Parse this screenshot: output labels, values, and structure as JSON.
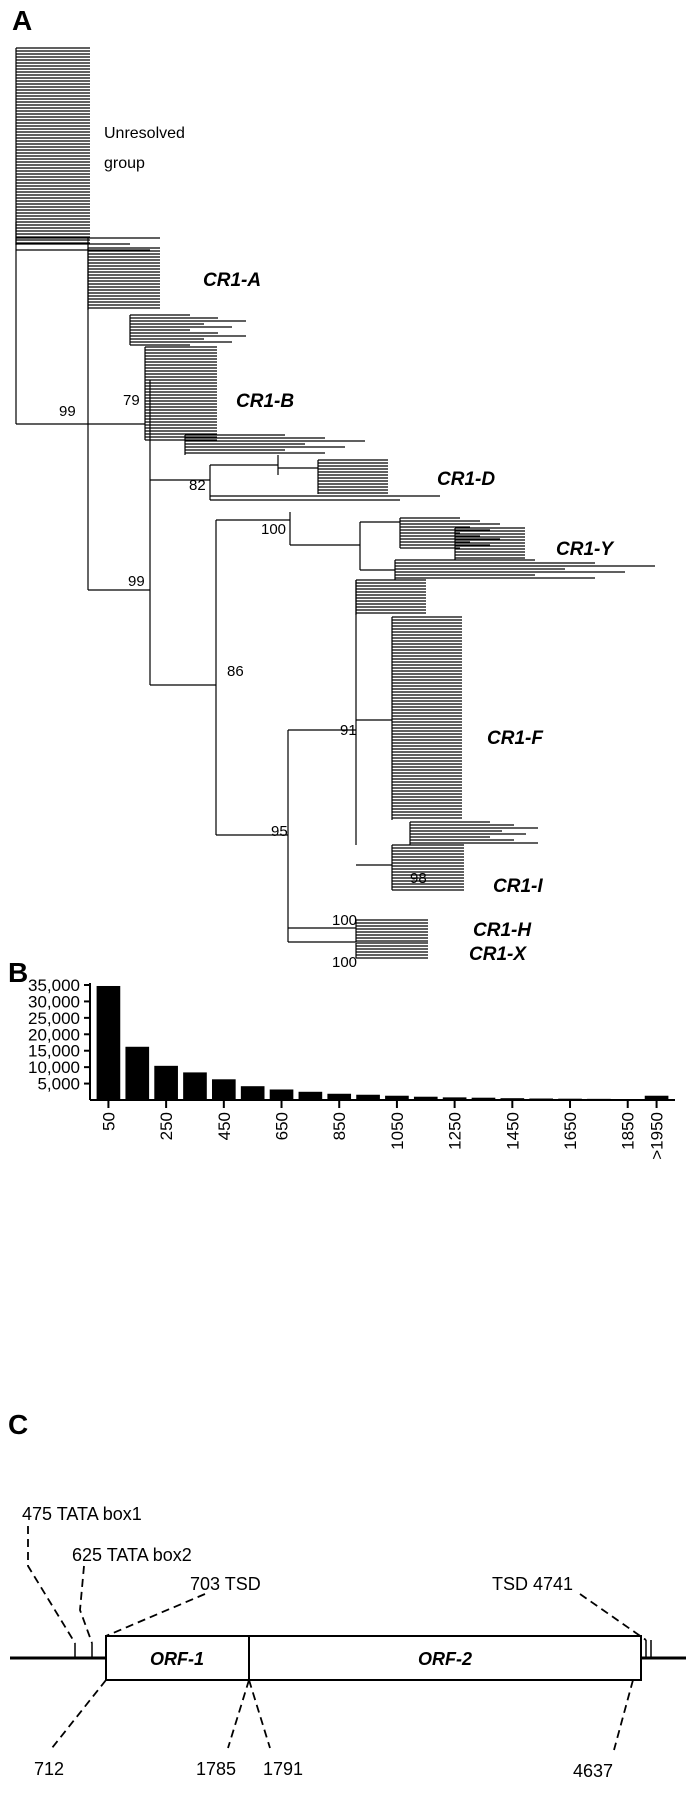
{
  "panels": {
    "a": "A",
    "b": "B",
    "c": "C"
  },
  "tree": {
    "unresolved_line1": "Unresolved",
    "unresolved_line2": "group",
    "clades": [
      "CR1-A",
      "CR1-B",
      "CR1-D",
      "CR1-Y",
      "CR1-F",
      "CR1-I",
      "CR1-H",
      "CR1-X"
    ],
    "bootstrap": [
      "99",
      "79",
      "82",
      "100",
      "99",
      "86",
      "91",
      "95",
      "98",
      "100",
      "100"
    ]
  },
  "chart_data": {
    "type": "bar",
    "categories": [
      "50",
      "150",
      "250",
      "350",
      "450",
      "550",
      "650",
      "750",
      "850",
      "950",
      "1050",
      "1150",
      "1250",
      "1350",
      "1450",
      "1550",
      "1650",
      "1750",
      "1850",
      "1950"
    ],
    "x_tick_labels": [
      "50",
      "250",
      "450",
      "650",
      "850",
      "1050",
      "1250",
      "1450",
      "1650",
      "1850",
      ">1950"
    ],
    "values": [
      34700,
      16200,
      10400,
      8400,
      6300,
      4200,
      3200,
      2500,
      1900,
      1600,
      1300,
      1000,
      800,
      700,
      550,
      450,
      400,
      350,
      300,
      1300
    ],
    "y_ticks": [
      "5,000",
      "10,000",
      "15,000",
      "20,000",
      "25,000",
      "30,000",
      "35,000"
    ],
    "ylim": [
      0,
      35000
    ],
    "bar_color": "#000000"
  },
  "structure": {
    "orf1": "ORF-1",
    "orf2": "ORF-2",
    "top_labels": [
      "475 TATA box1",
      "625 TATA box2",
      "703 TSD",
      "TSD 4741"
    ],
    "bottom_labels": [
      "712",
      "1785",
      "1791",
      "4637"
    ]
  }
}
